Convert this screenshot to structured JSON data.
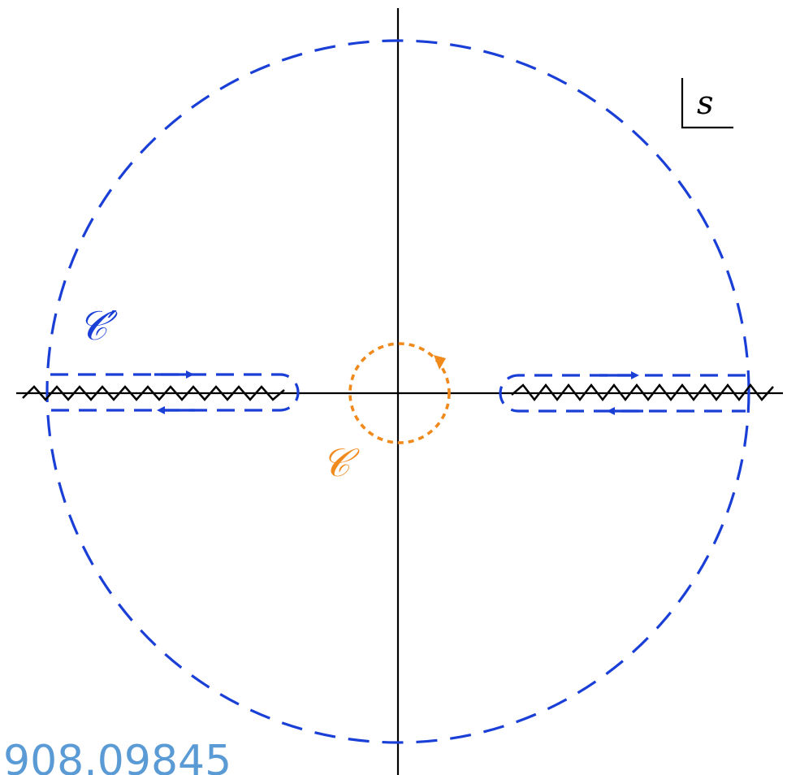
{
  "labels": {
    "plane_variable": "s",
    "small_contour": "𝒞",
    "large_contour": "𝒞′",
    "watermark": "908.09845"
  },
  "colors": {
    "axes": "#000000",
    "large_contour": "#1a3fd6",
    "small_contour": "#f08a1c",
    "watermark": "#5b9bd5"
  },
  "icons": {
    "arrow": "triangle-arrowhead",
    "branch_cut": "zigzag-line"
  }
}
